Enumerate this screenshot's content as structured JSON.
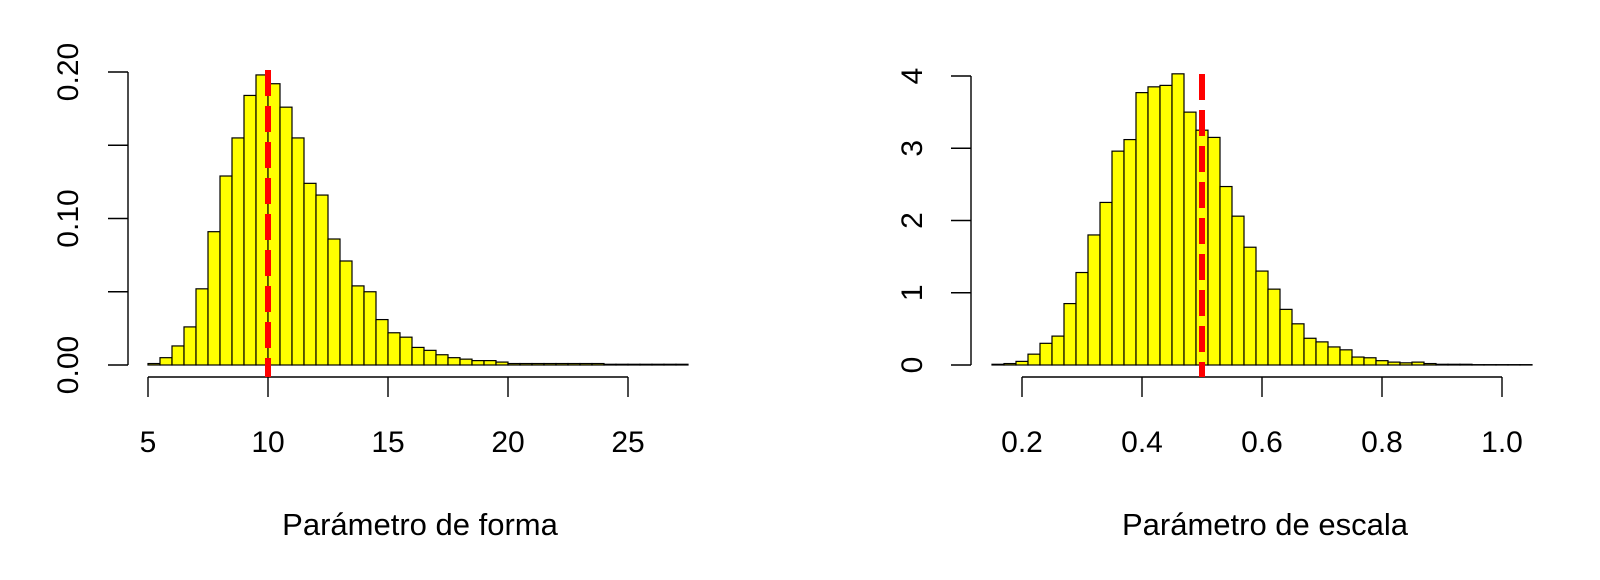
{
  "colors": {
    "bar_fill": "#ffff00",
    "bar_stroke": "#000000",
    "reference_line": "#ff0000",
    "axis": "#000000"
  },
  "chart_data": [
    {
      "type": "bar",
      "chart_kind": "histogram",
      "xlabel": "Parámetro de forma",
      "ylabel": "",
      "xlim": [
        5,
        27.5
      ],
      "ylim": [
        0,
        0.2
      ],
      "x_ticks": [
        5,
        10,
        15,
        20,
        25
      ],
      "x_tick_labels": [
        "5",
        "10",
        "15",
        "20",
        "25"
      ],
      "y_ticks": [
        0,
        0.05,
        0.1,
        0.15,
        0.2
      ],
      "y_tick_labels": [
        "0.00",
        "",
        "0.10",
        "",
        "0.20"
      ],
      "bin_width": 0.5,
      "bin_start": 5,
      "values": [
        0.001,
        0.005,
        0.013,
        0.026,
        0.052,
        0.091,
        0.129,
        0.155,
        0.184,
        0.198,
        0.192,
        0.176,
        0.155,
        0.124,
        0.116,
        0.086,
        0.071,
        0.054,
        0.05,
        0.031,
        0.022,
        0.019,
        0.012,
        0.01,
        0.007,
        0.005,
        0.004,
        0.003,
        0.003,
        0.002,
        0.001,
        0.001,
        0.001,
        0.001,
        0.001,
        0.001,
        0.001,
        0.001,
        0.0005,
        0.0005,
        0.0005,
        0.0005,
        0.0005,
        0.0005,
        0.0005
      ],
      "reference_line": {
        "x": 10,
        "style": "dashed",
        "color": "#ff0000"
      },
      "grid": false
    },
    {
      "type": "bar",
      "chart_kind": "histogram",
      "xlabel": "Parámetro de escala",
      "ylabel": "",
      "xlim": [
        0.15,
        1.05
      ],
      "ylim": [
        0,
        4
      ],
      "x_ticks": [
        0.2,
        0.4,
        0.6,
        0.8,
        1.0
      ],
      "x_tick_labels": [
        "0.2",
        "0.4",
        "0.6",
        "0.8",
        "1.0"
      ],
      "y_ticks": [
        0,
        1,
        2,
        3,
        4
      ],
      "y_tick_labels": [
        "0",
        "1",
        "2",
        "3",
        "4"
      ],
      "bin_width": 0.02,
      "bin_start": 0.15,
      "values": [
        0.01,
        0.02,
        0.05,
        0.15,
        0.3,
        0.4,
        0.85,
        1.28,
        1.8,
        2.25,
        2.96,
        3.12,
        3.77,
        3.85,
        3.87,
        4.03,
        3.5,
        3.25,
        3.15,
        2.47,
        2.06,
        1.63,
        1.3,
        1.05,
        0.77,
        0.57,
        0.37,
        0.32,
        0.25,
        0.21,
        0.11,
        0.1,
        0.06,
        0.04,
        0.03,
        0.04,
        0.02,
        0.01,
        0.01,
        0.01,
        0.005,
        0.005,
        0.005,
        0.005,
        0.005
      ],
      "reference_line": {
        "x": 0.5,
        "style": "dashed",
        "color": "#ff0000"
      },
      "grid": false
    }
  ]
}
